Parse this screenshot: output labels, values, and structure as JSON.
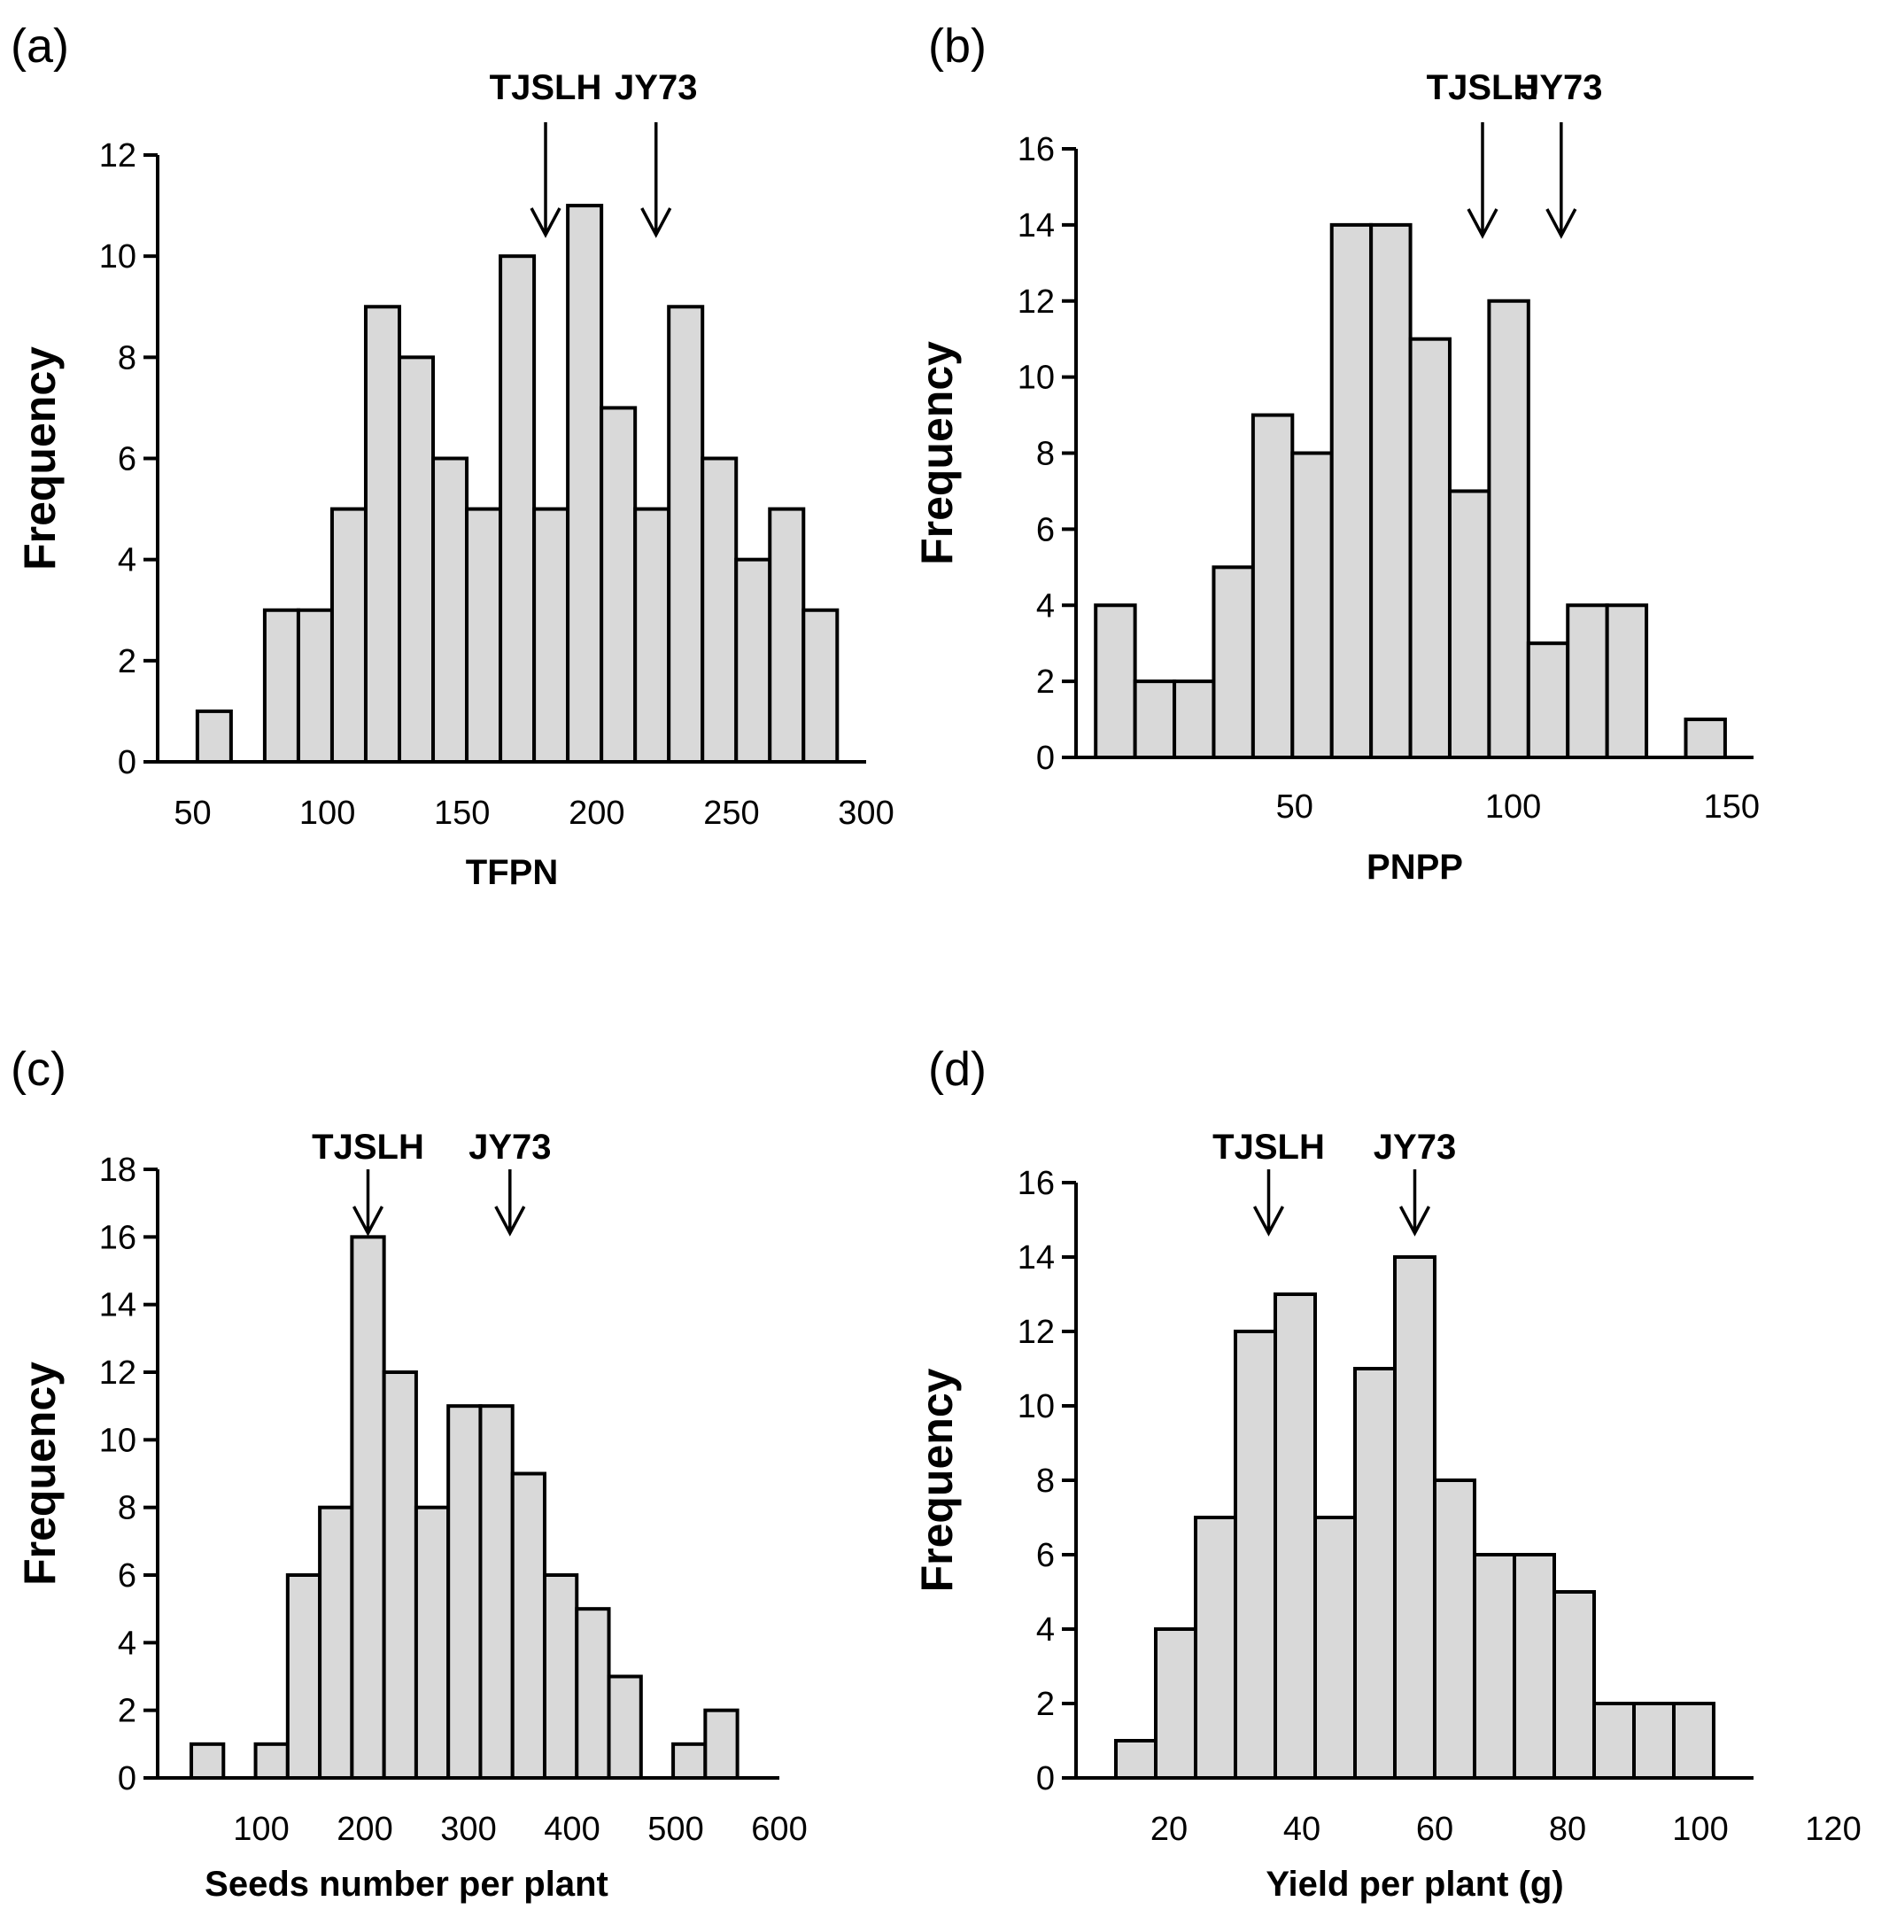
{
  "chart_data": [
    {
      "type": "bar",
      "panel_label": "(a)",
      "xlabel": "TFPN",
      "ylabel": "Frequency",
      "xlim": [
        37,
        300
      ],
      "ylim": [
        0,
        12
      ],
      "xticks": [
        50,
        100,
        150,
        200,
        250,
        300
      ],
      "yticks": [
        0,
        2,
        4,
        6,
        8,
        10,
        12
      ],
      "bin_width": 12.5,
      "bins": [
        {
          "center": 58,
          "value": 1
        },
        {
          "center": 83,
          "value": 3
        },
        {
          "center": 95.5,
          "value": 3
        },
        {
          "center": 108,
          "value": 5
        },
        {
          "center": 120.5,
          "value": 9
        },
        {
          "center": 133,
          "value": 8
        },
        {
          "center": 145.5,
          "value": 6
        },
        {
          "center": 158,
          "value": 5
        },
        {
          "center": 170.5,
          "value": 10
        },
        {
          "center": 183,
          "value": 5
        },
        {
          "center": 195.5,
          "value": 11
        },
        {
          "center": 208,
          "value": 7
        },
        {
          "center": 220.5,
          "value": 5
        },
        {
          "center": 233,
          "value": 9
        },
        {
          "center": 245.5,
          "value": 6
        },
        {
          "center": 258,
          "value": 4
        },
        {
          "center": 270.5,
          "value": 5
        },
        {
          "center": 283,
          "value": 3
        }
      ],
      "markers": [
        {
          "label": "TJSLH",
          "x": 181
        },
        {
          "label": "JY73",
          "x": 222
        }
      ]
    },
    {
      "type": "bar",
      "panel_label": "(b)",
      "xlabel": "PNPP",
      "ylabel": "Frequency",
      "xlim": [
        0,
        155
      ],
      "ylim": [
        0,
        16
      ],
      "xticks": [
        50,
        100,
        150
      ],
      "yticks": [
        0,
        2,
        4,
        6,
        8,
        10,
        12,
        14,
        16
      ],
      "bin_width": 9,
      "bins": [
        {
          "center": 9,
          "value": 4
        },
        {
          "center": 18,
          "value": 2
        },
        {
          "center": 27,
          "value": 2
        },
        {
          "center": 36,
          "value": 5
        },
        {
          "center": 45,
          "value": 9
        },
        {
          "center": 54,
          "value": 8
        },
        {
          "center": 63,
          "value": 14
        },
        {
          "center": 72,
          "value": 14
        },
        {
          "center": 81,
          "value": 11
        },
        {
          "center": 90,
          "value": 7
        },
        {
          "center": 99,
          "value": 12
        },
        {
          "center": 108,
          "value": 3
        },
        {
          "center": 117,
          "value": 4
        },
        {
          "center": 126,
          "value": 4
        },
        {
          "center": 144,
          "value": 1
        }
      ],
      "markers": [
        {
          "label": "TJSLH",
          "x": 93
        },
        {
          "label": "JY73",
          "x": 111
        }
      ]
    },
    {
      "type": "bar",
      "panel_label": "(c)",
      "xlabel": "Seeds number per plant",
      "ylabel": "Frequency",
      "xlim": [
        0,
        600
      ],
      "ylim": [
        0,
        18
      ],
      "xticks": [
        100,
        200,
        300,
        400,
        500,
        600
      ],
      "yticks": [
        0,
        2,
        4,
        6,
        8,
        10,
        12,
        14,
        16,
        18
      ],
      "bin_width": 31,
      "bins": [
        {
          "center": 48,
          "value": 1
        },
        {
          "center": 110,
          "value": 1
        },
        {
          "center": 141,
          "value": 6
        },
        {
          "center": 172,
          "value": 8
        },
        {
          "center": 203,
          "value": 16
        },
        {
          "center": 234,
          "value": 12
        },
        {
          "center": 265,
          "value": 8
        },
        {
          "center": 296,
          "value": 11
        },
        {
          "center": 327,
          "value": 11
        },
        {
          "center": 358,
          "value": 9
        },
        {
          "center": 389,
          "value": 6
        },
        {
          "center": 420,
          "value": 5
        },
        {
          "center": 451,
          "value": 3
        },
        {
          "center": 513,
          "value": 1
        },
        {
          "center": 544,
          "value": 2
        }
      ],
      "markers": [
        {
          "label": "TJSLH",
          "x": 203
        },
        {
          "label": "JY73",
          "x": 340
        }
      ]
    },
    {
      "type": "bar",
      "panel_label": "(d)",
      "xlabel": "Yield  per plant (g)",
      "ylabel": "Frequency",
      "xlim": [
        6,
        108
      ],
      "ylim": [
        0,
        16
      ],
      "xticks": [
        20,
        40,
        60,
        80,
        100,
        120
      ],
      "yticks": [
        0,
        2,
        4,
        6,
        8,
        10,
        12,
        14,
        16
      ],
      "bin_width": 6,
      "bins": [
        {
          "center": 15,
          "value": 1
        },
        {
          "center": 21,
          "value": 4
        },
        {
          "center": 27,
          "value": 7
        },
        {
          "center": 33,
          "value": 12
        },
        {
          "center": 39,
          "value": 13
        },
        {
          "center": 45,
          "value": 7
        },
        {
          "center": 51,
          "value": 11
        },
        {
          "center": 57,
          "value": 14
        },
        {
          "center": 63,
          "value": 8
        },
        {
          "center": 69,
          "value": 6
        },
        {
          "center": 75,
          "value": 6
        },
        {
          "center": 81,
          "value": 5
        },
        {
          "center": 87,
          "value": 2
        },
        {
          "center": 93,
          "value": 2
        },
        {
          "center": 99,
          "value": 2
        }
      ],
      "markers": [
        {
          "label": "TJSLH",
          "x": 35
        },
        {
          "label": "JY73",
          "x": 57
        }
      ]
    }
  ]
}
